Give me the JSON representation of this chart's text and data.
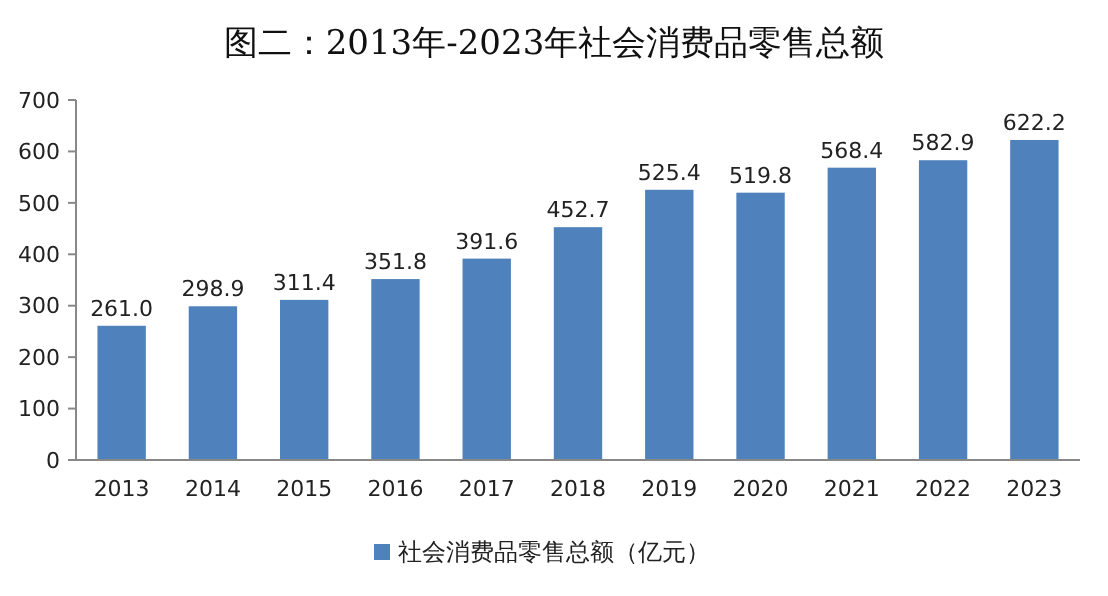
{
  "chart_data": {
    "type": "bar",
    "title": "图二：2013年-2023年社会消费品零售总额",
    "categories": [
      "2013",
      "2014",
      "2015",
      "2016",
      "2017",
      "2018",
      "2019",
      "2020",
      "2021",
      "2022",
      "2023"
    ],
    "series": [
      {
        "name": "社会消费品零售总额（亿元）",
        "color": "#4f81bd",
        "values": [
          261.0,
          298.9,
          311.4,
          351.8,
          391.6,
          452.7,
          525.4,
          519.8,
          568.4,
          582.9,
          622.2
        ]
      }
    ],
    "value_labels": [
      "261.0",
      "298.9",
      "311.4",
      "351.8",
      "391.6",
      "452.7",
      "525.4",
      "519.8",
      "568.4",
      "582.9",
      "622.2"
    ],
    "ylim": [
      0,
      700
    ],
    "yticks": [
      0,
      100,
      200,
      300,
      400,
      500,
      600,
      700
    ],
    "grid": false,
    "legend": "bottom"
  }
}
